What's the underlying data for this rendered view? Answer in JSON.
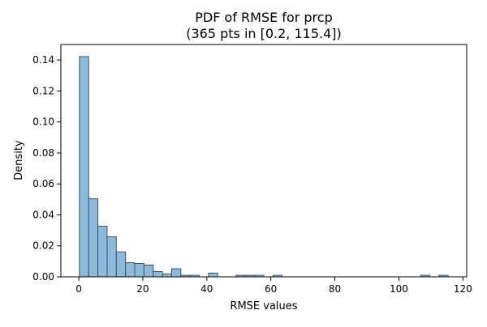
{
  "chart_data": {
    "type": "bar",
    "title_line1": "PDF of RMSE for prcp",
    "title_line2": "(365 pts in [0.2, 115.4])",
    "xlabel": "RMSE values",
    "ylabel": "Density",
    "xlim": [
      -5.6,
      121.2
    ],
    "ylim": [
      0,
      0.15
    ],
    "xticks": [
      0,
      20,
      40,
      60,
      80,
      100,
      120
    ],
    "yticks": [
      0.0,
      0.02,
      0.04,
      0.06,
      0.08,
      0.1,
      0.12,
      0.14
    ],
    "xtick_labels": [
      "0",
      "20",
      "40",
      "60",
      "80",
      "100",
      "120"
    ],
    "ytick_labels": [
      "0.00",
      "0.02",
      "0.04",
      "0.06",
      "0.08",
      "0.10",
      "0.12",
      "0.14"
    ],
    "bin_range": [
      0.2,
      115.4
    ],
    "bin_count": 40,
    "densities": [
      0.1422,
      0.0504,
      0.0327,
      0.0258,
      0.0161,
      0.0091,
      0.0086,
      0.0076,
      0.0034,
      0.0019,
      0.0052,
      0.001,
      0.001,
      0.0,
      0.0024,
      0.0,
      0.0,
      0.001,
      0.001,
      0.001,
      0.0,
      0.001,
      0.0,
      0.0,
      0.0,
      0.0,
      0.0,
      0.0,
      0.0,
      0.0,
      0.0,
      0.0,
      0.0,
      0.0,
      0.0,
      0.0,
      0.0,
      0.001,
      0.0,
      0.001
    ],
    "bar_fill": "#8cbadb",
    "bar_edge": "#3b5566",
    "grid": false,
    "legend": "none"
  }
}
